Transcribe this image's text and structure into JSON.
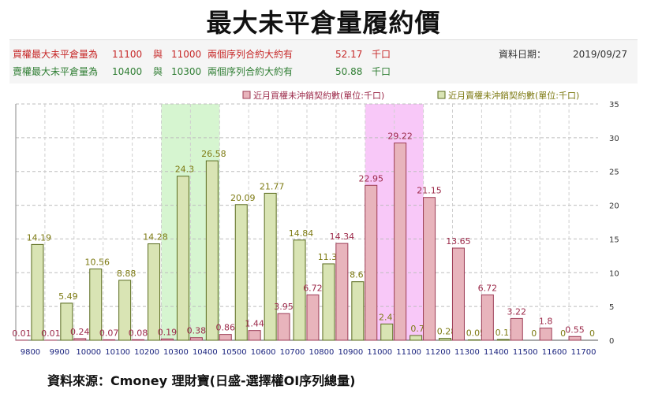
{
  "title": "最大未平倉量履約價",
  "info": {
    "call_row": {
      "label": "買權最大未平倉量為",
      "strike1": "11100",
      "conj": "與",
      "strike2": "11000",
      "desc": "兩個序列合約大約有",
      "amount": "52.17",
      "unit": "千口"
    },
    "put_row": {
      "label": "賣權最大未平倉量為",
      "strike1": "10400",
      "conj": "與",
      "strike2": "10300",
      "desc": "兩個序列合約大約有",
      "amount": "50.88",
      "unit": "千口"
    },
    "date_label": "資料日期：",
    "date": "2019/09/27"
  },
  "source": "資料來源：Cmoney 理財寶(日盛-選擇權OI序列總量)",
  "colors": {
    "call_fill": "#e8b4bc",
    "call_stroke": "#9c3b55",
    "call_label": "#9c2a4a",
    "put_fill": "#d9e4b4",
    "put_stroke": "#5a6b1e",
    "put_label": "#7d7a12",
    "highlight_put": "#d6f5d0",
    "highlight_call": "#f8c8f8"
  },
  "chart_data": {
    "type": "bar",
    "categories": [
      "9800",
      "9900",
      "10000",
      "10100",
      "10200",
      "10300",
      "10400",
      "10500",
      "10600",
      "10700",
      "10800",
      "10900",
      "11000",
      "11100",
      "11200",
      "11300",
      "11400",
      "11500",
      "11600",
      "11700"
    ],
    "series": [
      {
        "name": "近月買權未沖銷契約數(單位:千口)",
        "values": [
          0.01,
          0.01,
          0.24,
          0.07,
          0.08,
          0.19,
          0.38,
          0.86,
          1.44,
          3.95,
          6.72,
          14.34,
          22.95,
          29.22,
          21.15,
          13.65,
          6.72,
          3.22,
          1.8,
          0.55
        ]
      },
      {
        "name": "近月賣權未沖銷契約數(單位:千口)",
        "values": [
          14.19,
          5.49,
          10.56,
          8.88,
          14.28,
          24.3,
          26.58,
          20.09,
          21.77,
          14.84,
          11.32,
          8.67,
          2.41,
          0.7,
          0.28,
          0.05,
          0.11,
          0,
          0,
          0
        ]
      }
    ],
    "ylim": [
      0,
      35
    ],
    "yticks": [
      0,
      5,
      10,
      15,
      20,
      25,
      30,
      35
    ],
    "y_axis_position": "right",
    "legend_position": "top-right",
    "highlighted_categories": {
      "put": [
        "10300",
        "10400"
      ],
      "call": [
        "11000",
        "11100"
      ]
    },
    "grid": true
  }
}
